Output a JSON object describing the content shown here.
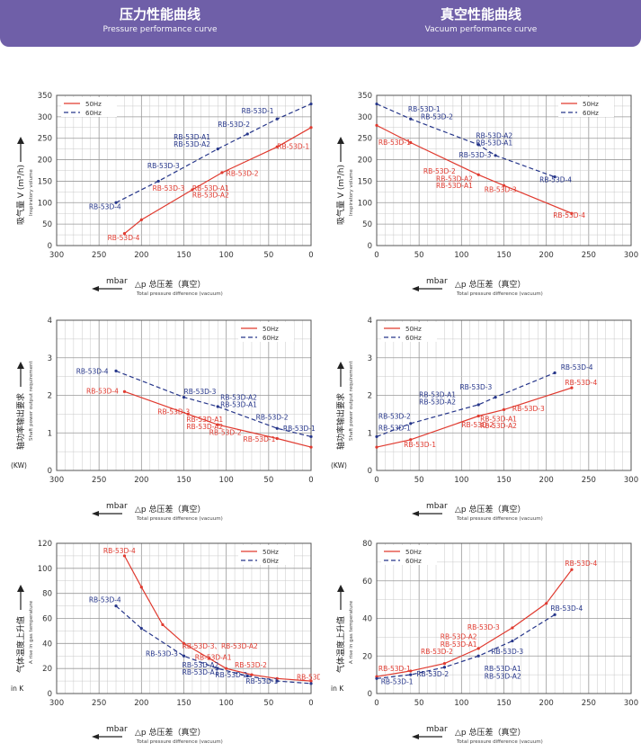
{
  "header": {
    "left_zh": "压力性能曲线",
    "left_en": "Pressure performance curve",
    "right_zh": "真空性能曲线",
    "right_en": "Vacuum performance curve"
  },
  "colors": {
    "banner": "#6f5fa8",
    "red": "#e03a2f",
    "blue": "#26368a"
  },
  "chart_data": [
    {
      "id": "p-vol",
      "type": "line",
      "xlim": [
        300,
        0
      ],
      "ylim": [
        0,
        350
      ],
      "xticks": [
        "300",
        "250",
        "200",
        "150",
        "100",
        "50",
        "0"
      ],
      "yticks": [
        "0",
        "50",
        "100",
        "150",
        "200",
        "250",
        "300",
        "350"
      ],
      "ylabel_zh": "吸气量 V (m³/h)",
      "ylabel_en": "Inspiratory volume",
      "xlabel": "mbar",
      "xlabel_zh": "△p  总压差（真空）",
      "xlabel_en": "Total pressure difference (vacuum)",
      "legend": [
        "50Hz",
        "60Hz"
      ],
      "legend_pos": "top-left",
      "series": [
        {
          "name": "50Hz",
          "color": "red",
          "dash": false,
          "x": [
            220,
            200,
            140,
            105,
            40,
            0
          ],
          "y": [
            28,
            60,
            130,
            170,
            230,
            275
          ]
        },
        {
          "name": "60Hz",
          "color": "blue",
          "dash": true,
          "x": [
            230,
            180,
            110,
            75,
            40,
            0
          ],
          "y": [
            100,
            150,
            225,
            260,
            295,
            330
          ]
        }
      ],
      "labels": [
        {
          "t": "RB-53D-4",
          "c": "red",
          "x": 240,
          "y": 13
        },
        {
          "t": "RB-53D-3",
          "c": "red",
          "x": 187,
          "y": 128
        },
        {
          "t": "RB-53D-A1",
          "c": "red",
          "x": 140,
          "y": 128
        },
        {
          "t": "RB-53D-A2",
          "c": "red",
          "x": 140,
          "y": 112
        },
        {
          "t": "RB-53D-2",
          "c": "red",
          "x": 100,
          "y": 162
        },
        {
          "t": "RB-53D-1",
          "c": "red",
          "x": 40,
          "y": 225
        },
        {
          "t": "RB-53D-4",
          "c": "blue",
          "x": 262,
          "y": 85
        },
        {
          "t": "RB-53D-3",
          "c": "blue",
          "x": 193,
          "y": 180
        },
        {
          "t": "RB-53D-A1",
          "c": "blue",
          "x": 162,
          "y": 247
        },
        {
          "t": "RB-53D-A2",
          "c": "blue",
          "x": 162,
          "y": 231
        },
        {
          "t": "RB-53D-2",
          "c": "blue",
          "x": 110,
          "y": 277
        },
        {
          "t": "RB-53D-1",
          "c": "blue",
          "x": 82,
          "y": 308
        }
      ]
    },
    {
      "id": "v-vol",
      "type": "line",
      "xlim": [
        0,
        300
      ],
      "ylim": [
        0,
        350
      ],
      "xticks": [
        "0",
        "50",
        "100",
        "150",
        "200",
        "250",
        "300"
      ],
      "yticks": [
        "0",
        "50",
        "100",
        "150",
        "200",
        "250",
        "300",
        "350"
      ],
      "ylabel_zh": "吸气量 V (m³/h)",
      "ylabel_en": "Inspiratory volume",
      "xlabel": "mbar",
      "xlabel_zh": "△p  总压差（真空）",
      "xlabel_en": "Total pressure difference (vacuum)",
      "legend": [
        "50Hz",
        "60Hz"
      ],
      "legend_pos": "top-right",
      "series": [
        {
          "name": "50Hz",
          "color": "red",
          "dash": false,
          "x": [
            0,
            40,
            120,
            150,
            230
          ],
          "y": [
            280,
            240,
            165,
            140,
            75
          ]
        },
        {
          "name": "60Hz",
          "color": "blue",
          "dash": true,
          "x": [
            0,
            40,
            120,
            140,
            210
          ],
          "y": [
            330,
            295,
            235,
            210,
            160
          ]
        }
      ],
      "labels": [
        {
          "t": "RB-53D-1",
          "c": "red",
          "x": 2,
          "y": 235
        },
        {
          "t": "RB-53D-2",
          "c": "red",
          "x": 55,
          "y": 168
        },
        {
          "t": "RB-53D-A2",
          "c": "red",
          "x": 70,
          "y": 150
        },
        {
          "t": "RB-53D-A1",
          "c": "red",
          "x": 70,
          "y": 134
        },
        {
          "t": "RB-53D-3",
          "c": "red",
          "x": 127,
          "y": 125
        },
        {
          "t": "RB-53D-4",
          "c": "red",
          "x": 208,
          "y": 65
        },
        {
          "t": "RB-53D-1",
          "c": "blue",
          "x": 37,
          "y": 312
        },
        {
          "t": "RB-53D-2",
          "c": "blue",
          "x": 52,
          "y": 294
        },
        {
          "t": "RB-53D-A2",
          "c": "blue",
          "x": 117,
          "y": 250
        },
        {
          "t": "RB-53D-A1",
          "c": "blue",
          "x": 117,
          "y": 234
        },
        {
          "t": "RB-53D-3",
          "c": "blue",
          "x": 97,
          "y": 205
        },
        {
          "t": "RB-53D-4",
          "c": "blue",
          "x": 192,
          "y": 148
        }
      ]
    },
    {
      "id": "p-pow",
      "type": "line",
      "xlim": [
        300,
        0
      ],
      "ylim": [
        0,
        4
      ],
      "xticks": [
        "300",
        "250",
        "200",
        "150",
        "100",
        "50",
        "0"
      ],
      "yticks": [
        "0",
        "1",
        "2",
        "3",
        "4"
      ],
      "ylabel_zh": "轴功率输出要求",
      "ylabel_en": "Shaft power output requirement",
      "unit": "(KW)",
      "xlabel": "mbar",
      "xlabel_zh": "△p  总压差（真空）",
      "xlabel_en": "Total pressure difference (vacuum)",
      "legend": [
        "50Hz",
        "60Hz"
      ],
      "legend_pos": "top-right",
      "series": [
        {
          "name": "50Hz",
          "color": "red",
          "dash": false,
          "x": [
            220,
            145,
            110,
            40,
            0
          ],
          "y": [
            2.1,
            1.5,
            1.22,
            0.85,
            0.62
          ]
        },
        {
          "name": "60Hz",
          "color": "blue",
          "dash": true,
          "x": [
            230,
            150,
            110,
            40,
            0
          ],
          "y": [
            2.65,
            1.95,
            1.7,
            1.12,
            0.9
          ]
        }
      ],
      "labels": [
        {
          "t": "RB-53D-4",
          "c": "red",
          "x": 265,
          "y": 2.05
        },
        {
          "t": "RB-53D-3",
          "c": "red",
          "x": 181,
          "y": 1.5
        },
        {
          "t": "RB-53D-A1",
          "c": "red",
          "x": 147,
          "y": 1.29
        },
        {
          "t": "RB-53D-A2",
          "c": "red",
          "x": 147,
          "y": 1.1
        },
        {
          "t": "RB-53D-2",
          "c": "red",
          "x": 120,
          "y": 0.95
        },
        {
          "t": "RB-53D-1",
          "c": "red",
          "x": 80,
          "y": 0.77
        },
        {
          "t": "RB-53D-4",
          "c": "blue",
          "x": 277,
          "y": 2.58
        },
        {
          "t": "RB-53D-3",
          "c": "blue",
          "x": 150,
          "y": 2.03
        },
        {
          "t": "RB-53D-A2",
          "c": "blue",
          "x": 107,
          "y": 1.88
        },
        {
          "t": "RB-53D-A1",
          "c": "blue",
          "x": 107,
          "y": 1.69
        },
        {
          "t": "RB-53D-2",
          "c": "blue",
          "x": 65,
          "y": 1.35
        },
        {
          "t": "RB-53D-1",
          "c": "blue",
          "x": 33,
          "y": 1.05
        }
      ]
    },
    {
      "id": "v-pow",
      "type": "line",
      "xlim": [
        0,
        300
      ],
      "ylim": [
        0,
        4
      ],
      "xticks": [
        "0",
        "50",
        "100",
        "150",
        "200",
        "250",
        "300"
      ],
      "yticks": [
        "0",
        "1",
        "2",
        "3",
        "4"
      ],
      "ylabel_zh": "轴功率输出要求",
      "ylabel_en": "Shaft power output requirement",
      "unit": "(KW)",
      "xlabel": "mbar",
      "xlabel_zh": "△p  总压差（真空）",
      "xlabel_en": "Total pressure difference (vacuum)",
      "legend": [
        "50Hz",
        "60Hz"
      ],
      "legend_pos": "top-left",
      "series": [
        {
          "name": "50Hz",
          "color": "red",
          "dash": false,
          "x": [
            0,
            40,
            120,
            150,
            230
          ],
          "y": [
            0.62,
            0.82,
            1.45,
            1.62,
            2.2
          ]
        },
        {
          "name": "60Hz",
          "color": "blue",
          "dash": true,
          "x": [
            0,
            40,
            120,
            140,
            210
          ],
          "y": [
            0.9,
            1.25,
            1.75,
            1.95,
            2.6
          ]
        }
      ],
      "labels": [
        {
          "t": "RB-53D-1",
          "c": "red",
          "x": 32,
          "y": 0.62
        },
        {
          "t": "RB-53D-2",
          "c": "red",
          "x": 100,
          "y": 1.15
        },
        {
          "t": "RB-53D-3",
          "c": "red",
          "x": 160,
          "y": 1.58
        },
        {
          "t": "RB-53D-A1",
          "c": "red",
          "x": 122,
          "y": 1.3
        },
        {
          "t": "RB-53D-A2",
          "c": "red",
          "x": 122,
          "y": 1.12
        },
        {
          "t": "RB-53D-4",
          "c": "red",
          "x": 222,
          "y": 2.28
        },
        {
          "t": "RB-53D-1",
          "c": "blue",
          "x": 2,
          "y": 1.06
        },
        {
          "t": "RB-53D-2",
          "c": "blue",
          "x": 2,
          "y": 1.38
        },
        {
          "t": "RB-53D-A1",
          "c": "blue",
          "x": 50,
          "y": 1.95
        },
        {
          "t": "RB-53D-A2",
          "c": "blue",
          "x": 50,
          "y": 1.76
        },
        {
          "t": "RB-53D-3",
          "c": "blue",
          "x": 98,
          "y": 2.15
        },
        {
          "t": "RB-53D-4",
          "c": "blue",
          "x": 217,
          "y": 2.68
        }
      ]
    },
    {
      "id": "p-temp",
      "type": "line",
      "xlim": [
        300,
        0
      ],
      "ylim": [
        0,
        120
      ],
      "xticks": [
        "300",
        "250",
        "200",
        "150",
        "100",
        "50",
        "0"
      ],
      "yticks": [
        "0",
        "20",
        "40",
        "60",
        "80",
        "100",
        "120"
      ],
      "ylabel_zh": "气体温度上升值",
      "ylabel_en": "A rise in gas temperature",
      "unit": "in K",
      "xlabel": "mbar",
      "xlabel_zh": "△p  总压差（真空）",
      "xlabel_en": "Total pressure difference (vacuum)",
      "legend": [
        "50Hz",
        "60Hz"
      ],
      "legend_pos": "top-right",
      "series": [
        {
          "name": "50Hz",
          "color": "red",
          "dash": false,
          "x": [
            220,
            200,
            175,
            150,
            120,
            100,
            70,
            40,
            0
          ],
          "y": [
            110,
            85,
            55,
            40,
            28,
            20,
            15,
            12,
            10
          ]
        },
        {
          "name": "60Hz",
          "color": "blue",
          "dash": true,
          "x": [
            230,
            200,
            150,
            110,
            75,
            40,
            0
          ],
          "y": [
            70,
            52,
            30,
            20,
            14,
            10,
            8
          ]
        }
      ],
      "labels": [
        {
          "t": "RB-53D-4",
          "c": "red",
          "x": 245,
          "y": 112
        },
        {
          "t": "RB-53D-3、RB-53D-A2",
          "c": "red",
          "x": 152,
          "y": 36
        },
        {
          "t": "RB-53D-A1",
          "c": "red",
          "x": 137,
          "y": 27
        },
        {
          "t": "RB-53D-2",
          "c": "red",
          "x": 90,
          "y": 21
        },
        {
          "t": "RB-53D-1",
          "c": "red",
          "x": 17,
          "y": 11
        },
        {
          "t": "RB-53D-4",
          "c": "blue",
          "x": 262,
          "y": 73
        },
        {
          "t": "RB-53D-3",
          "c": "blue",
          "x": 195,
          "y": 30
        },
        {
          "t": "RB-53D-A2",
          "c": "blue",
          "x": 152,
          "y": 21
        },
        {
          "t": "RB-53D-A1",
          "c": "blue",
          "x": 152,
          "y": 15
        },
        {
          "t": "RB-53D-2",
          "c": "blue",
          "x": 113,
          "y": 13
        },
        {
          "t": "RB-53D-1",
          "c": "blue",
          "x": 77,
          "y": 8
        }
      ]
    },
    {
      "id": "v-temp",
      "type": "line",
      "xlim": [
        0,
        300
      ],
      "ylim": [
        0,
        80
      ],
      "xticks": [
        "0",
        "50",
        "100",
        "150",
        "200",
        "250",
        "300"
      ],
      "yticks": [
        "0",
        "20",
        "40",
        "60",
        "80"
      ],
      "ylabel_zh": "气体温度上升值",
      "ylabel_en": "A rise in gas temperature",
      "unit": "in K",
      "xlabel": "mbar",
      "xlabel_zh": "△p  总压差（真空）",
      "xlabel_en": "Total pressure difference (vacuum)",
      "legend": [
        "50Hz",
        "60Hz"
      ],
      "legend_pos": "top-left",
      "series": [
        {
          "name": "50Hz",
          "color": "red",
          "dash": false,
          "x": [
            0,
            40,
            80,
            120,
            160,
            200,
            230
          ],
          "y": [
            9,
            12,
            16,
            24,
            35,
            48,
            66
          ]
        },
        {
          "name": "60Hz",
          "color": "blue",
          "dash": true,
          "x": [
            0,
            40,
            80,
            120,
            160,
            210
          ],
          "y": [
            8,
            10,
            14,
            20,
            28,
            42
          ]
        }
      ],
      "labels": [
        {
          "t": "RB-53D-1",
          "c": "red",
          "x": 2,
          "y": 12
        },
        {
          "t": "RB-53D-2",
          "c": "red",
          "x": 52,
          "y": 21
        },
        {
          "t": "RB-53D-A1",
          "c": "red",
          "x": 75,
          "y": 25
        },
        {
          "t": "RB-53D-A2",
          "c": "red",
          "x": 75,
          "y": 29
        },
        {
          "t": "RB-53D-3",
          "c": "red",
          "x": 107,
          "y": 34
        },
        {
          "t": "RB-53D-4",
          "c": "red",
          "x": 222,
          "y": 68
        },
        {
          "t": "RB-53D-1",
          "c": "blue",
          "x": 5,
          "y": 5
        },
        {
          "t": "RB-53D-2",
          "c": "blue",
          "x": 47,
          "y": 9
        },
        {
          "t": "RB-53D-A1",
          "c": "blue",
          "x": 127,
          "y": 12
        },
        {
          "t": "RB-53D-A2",
          "c": "blue",
          "x": 127,
          "y": 8
        },
        {
          "t": "RB-53D-3",
          "c": "blue",
          "x": 135,
          "y": 21
        },
        {
          "t": "RB-53D-4",
          "c": "blue",
          "x": 205,
          "y": 44
        }
      ]
    }
  ]
}
